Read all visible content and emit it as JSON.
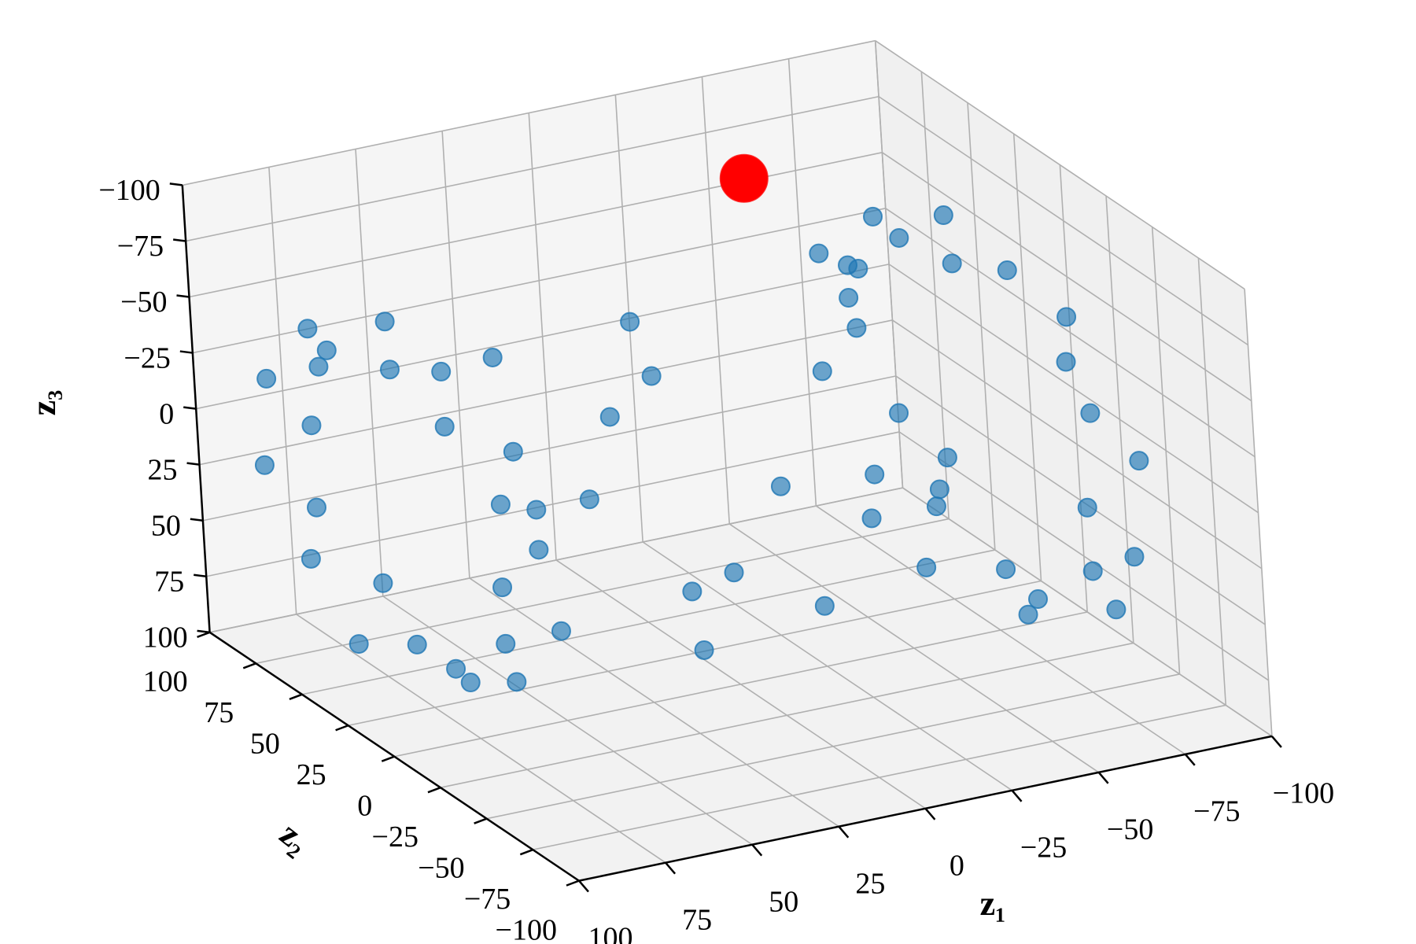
{
  "chart_data": {
    "type": "scatter3d",
    "xlabel": "z₁",
    "ylabel": "z₂",
    "zlabel": "z₃",
    "xlim": [
      -100,
      100
    ],
    "ylim": [
      -100,
      100
    ],
    "zlim": [
      100,
      -100
    ],
    "xticks": [
      {
        "value": -100,
        "label": "−100"
      },
      {
        "value": -75,
        "label": "−75"
      },
      {
        "value": -50,
        "label": "−50"
      },
      {
        "value": -25,
        "label": "−25"
      },
      0,
      25,
      50,
      75,
      100
    ],
    "yticks": [
      {
        "value": -100,
        "label": "−100"
      },
      {
        "value": -75,
        "label": "−75"
      },
      {
        "value": -50,
        "label": "−50"
      },
      {
        "value": -25,
        "label": "−25"
      },
      0,
      25,
      50,
      75,
      100
    ],
    "zticks": [
      {
        "value": -100,
        "label": "−100"
      },
      {
        "value": -75,
        "label": "−75"
      },
      {
        "value": -50,
        "label": "−50"
      },
      {
        "value": -25,
        "label": "−25"
      },
      0,
      25,
      50,
      75,
      100
    ],
    "grid": true,
    "series": [
      {
        "color": "#1f77b4",
        "x": [
          -72,
          -65,
          -78,
          -68,
          -74,
          -63,
          -75,
          -70,
          -66,
          -77,
          -69,
          -73,
          -64,
          -76,
          -71,
          -67,
          -79,
          -70,
          -65,
          -74,
          -68,
          -72,
          -66,
          -77,
          10,
          -20,
          30,
          -45,
          5,
          50,
          -10,
          25,
          -35,
          60,
          -55,
          15,
          40,
          -25,
          0,
          -60,
          80,
          90,
          84,
          88,
          78,
          92,
          85,
          80,
          90,
          83,
          87,
          79,
          91,
          84,
          86,
          80,
          89,
          83,
          88,
          79,
          90,
          85,
          81,
          88
        ],
        "y": [
          65,
          72,
          56,
          52,
          30,
          16,
          -5,
          -26,
          -40,
          -62,
          -66,
          -82,
          -75,
          -82,
          -66,
          -62,
          -40,
          -26,
          -5,
          16,
          30,
          52,
          56,
          72,
          20,
          -40,
          50,
          15,
          -60,
          -20,
          70,
          -30,
          40,
          10,
          -10,
          35,
          -55,
          -75,
          0,
          60,
          75,
          83,
          67,
          64,
          44,
          32,
          13,
          -6,
          -18,
          -38,
          -41,
          -57,
          -49,
          -57,
          -41,
          -38,
          -18,
          -6,
          13,
          32,
          44,
          64,
          67,
          83
        ],
        "z": [
          0,
          21,
          35,
          57,
          61,
          77,
          70,
          77,
          61,
          57,
          35,
          21,
          0,
          -21,
          -35,
          -57,
          -61,
          -77,
          -70,
          -77,
          -61,
          -57,
          -35,
          -21,
          -30,
          10,
          40,
          -50,
          30,
          -10,
          -20,
          60,
          45,
          -60,
          25,
          -5,
          15,
          -35,
          50,
          -40,
          0,
          19,
          31,
          51,
          54,
          70,
          62,
          70,
          54,
          51,
          31,
          19,
          0,
          -19,
          -31,
          -51,
          -54,
          -70,
          -62,
          -70,
          -54,
          -51,
          -31,
          -19
        ]
      },
      {
        "color": "#ff0000",
        "x": [
          -40
        ],
        "y": [
          60
        ],
        "z": [
          -80
        ]
      }
    ]
  }
}
